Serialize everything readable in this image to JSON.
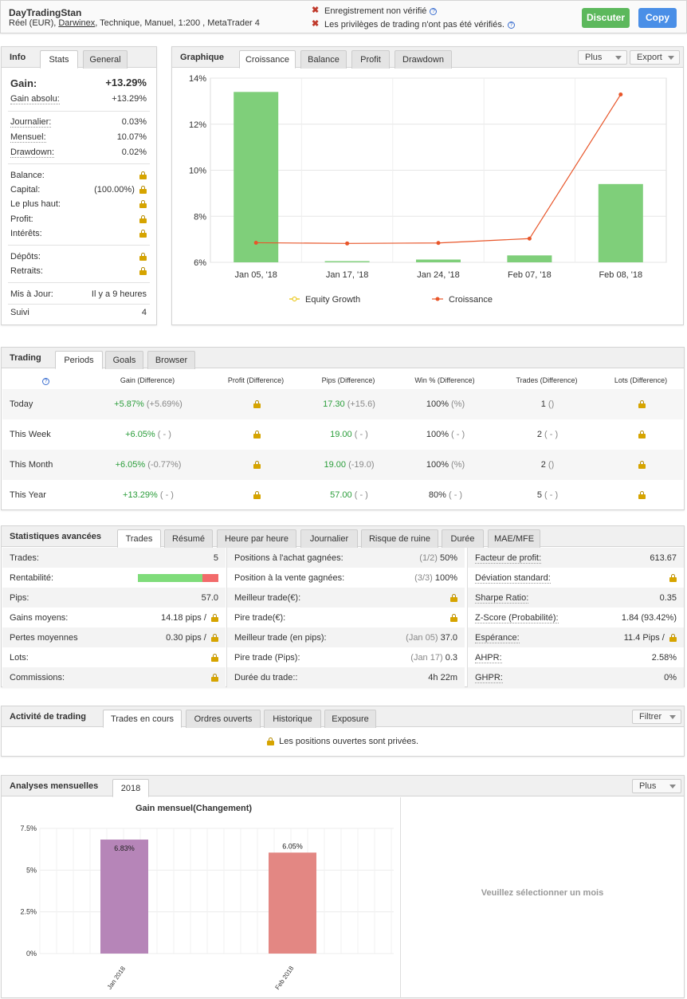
{
  "header": {
    "account_name": "DayTradingStan",
    "subtitle_prefix": "Réel (EUR),",
    "broker": "Darwinex",
    "subtitle_suffix": ", Technique, Manuel, 1:200 , MetaTrader 4",
    "warning1": "Enregistrement non vérifié",
    "warning2": "Les privilèges de trading n'ont pas été vérifiés.",
    "discuss_label": "Discuter",
    "copy_label": "Copy",
    "colors": {
      "discuss": "#5cb85c",
      "copy": "#4a8fe7"
    }
  },
  "info": {
    "title": "Info",
    "tabs": [
      "Stats",
      "General"
    ],
    "gain_label": "Gain:",
    "gain_value": "+13.29%",
    "gain_abs_label": "Gain absolu:",
    "gain_abs_value": "+13.29%",
    "daily_label": "Journalier:",
    "daily_value": "0.03%",
    "monthly_label": "Mensuel:",
    "monthly_value": "10.07%",
    "drawdown_label": "Drawdown:",
    "drawdown_value": "0.02%",
    "balance_label": "Balance:",
    "capital_label": "Capital:",
    "capital_value": "(100.00%)",
    "highest_label": "Le plus haut:",
    "profit_label": "Profit:",
    "interest_label": "Intérêts:",
    "deposits_label": "Dépôts:",
    "withdrawals_label": "Retraits:",
    "updated_label": "Mis à Jour:",
    "updated_value": "Il y a 9 heures",
    "followers_label": "Suivi",
    "followers_value": "4"
  },
  "graph": {
    "title": "Graphique",
    "tabs": [
      "Croissance",
      "Balance",
      "Profit",
      "Drawdown"
    ],
    "plus_label": "Plus",
    "export_label": "Export",
    "legend_equity": "Equity Growth",
    "legend_growth": "Croissance",
    "yticks": [
      "14%",
      "12%",
      "10%",
      "8%",
      "6%"
    ]
  },
  "chart_data": [
    {
      "type": "bar",
      "categories": [
        "Jan 05, '18",
        "Jan 17, '18",
        "Jan 24, '18",
        "Feb 07, '18",
        "Feb 08, '18"
      ],
      "ylim": [
        6,
        14
      ],
      "series": [
        {
          "name": "Equity Growth",
          "type": "bar",
          "values": [
            13.4,
            6.05,
            6.12,
            6.3,
            9.4
          ],
          "color": "#7fcf7a"
        },
        {
          "name": "Croissance",
          "type": "line",
          "values": [
            6.85,
            6.82,
            6.84,
            7.03,
            13.29
          ],
          "color": "#e8562a"
        }
      ],
      "legend": "bottom"
    },
    {
      "type": "bar",
      "title": "Gain mensuel(Changement)",
      "categories": [
        "Jan 2018",
        "Feb 2018"
      ],
      "values": [
        6.83,
        6.05
      ],
      "value_labels": [
        "6.83%",
        "6.05%"
      ],
      "colors": [
        "#b685b8",
        "#e38783"
      ],
      "yticks": [
        "7.5%",
        "5%",
        "2.5%",
        "0%"
      ],
      "ylim": [
        0,
        7.5
      ]
    }
  ],
  "trading": {
    "title": "Trading",
    "tabs": [
      "Periods",
      "Goals",
      "Browser"
    ],
    "columns": [
      "Gain (Difference)",
      "Profit (Difference)",
      "Pips (Difference)",
      "Win % (Difference)",
      "Trades (Difference)",
      "Lots (Difference)"
    ],
    "rows": [
      {
        "period": "Today",
        "gain": "+5.87%",
        "gain_diff": "(+5.69%)",
        "pips": "17.30",
        "pips_diff": "(+15.6)",
        "win": "100%",
        "win_diff": "(%)",
        "trades": "1",
        "trades_diff": "()"
      },
      {
        "period": "This Week",
        "gain": "+6.05%",
        "gain_diff": "( - )",
        "pips": "19.00",
        "pips_diff": "( - )",
        "win": "100%",
        "win_diff": "( - )",
        "trades": "2",
        "trades_diff": "( - )"
      },
      {
        "period": "This Month",
        "gain": "+6.05%",
        "gain_diff": "(-0.77%)",
        "pips": "19.00",
        "pips_diff": "(-19.0)",
        "win": "100%",
        "win_diff": "(%)",
        "trades": "2",
        "trades_diff": "()"
      },
      {
        "period": "This Year",
        "gain": "+13.29%",
        "gain_diff": "( - )",
        "pips": "57.00",
        "pips_diff": "( - )",
        "win": "80%",
        "win_diff": "( - )",
        "trades": "5",
        "trades_diff": "( - )"
      }
    ]
  },
  "stats": {
    "title": "Statistiques avancées",
    "tabs": [
      "Trades",
      "Résumé",
      "Heure par heure",
      "Journalier",
      "Risque de ruine",
      "Durée",
      "MAE/MFE"
    ],
    "col1": [
      {
        "label": "Trades:",
        "value": "5"
      },
      {
        "label": "Rentabilité:",
        "value": ""
      },
      {
        "label": "Pips:",
        "value": "57.0"
      },
      {
        "label": "Gains moyens:",
        "value": "14.18 pips /"
      },
      {
        "label": "Pertes moyennes",
        "value": "0.30 pips /"
      },
      {
        "label": "Lots:",
        "value": ""
      },
      {
        "label": "Commissions:",
        "value": ""
      }
    ],
    "profitability": 0.8,
    "col2": [
      {
        "label": "Positions à l'achat gagnées:",
        "extra": "(1/2)",
        "value": "50%"
      },
      {
        "label": "Position à la vente gagnées:",
        "extra": "(3/3)",
        "value": "100%"
      },
      {
        "label": "Meilleur trade(€):",
        "extra": "",
        "value": ""
      },
      {
        "label": "Pire trade(€):",
        "extra": "",
        "value": ""
      },
      {
        "label": "Meilleur trade (en pips):",
        "extra": "(Jan 05)",
        "value": "37.0"
      },
      {
        "label": "Pire trade (Pips):",
        "extra": "(Jan 17)",
        "value": "0.3"
      },
      {
        "label": "Durée du trade::",
        "extra": "",
        "value": "4h 22m"
      }
    ],
    "col3": [
      {
        "label": "Facteur de profit:",
        "value": "613.67"
      },
      {
        "label": "Déviation standard:",
        "value": ""
      },
      {
        "label": "Sharpe Ratio:",
        "value": "0.35"
      },
      {
        "label": "Z-Score (Probabilité):",
        "value": "1.84 (93.42%)"
      },
      {
        "label": "Espérance:",
        "value": "11.4 Pips /"
      },
      {
        "label": "AHPR:",
        "value": "2.58%"
      },
      {
        "label": "GHPR:",
        "value": "0%"
      }
    ]
  },
  "activity": {
    "title": "Activité de trading",
    "tabs": [
      "Trades en cours",
      "Ordres ouverts",
      "Historique",
      "Exposure"
    ],
    "filter_label": "Filtrer",
    "private_msg": "Les positions ouvertes sont privées."
  },
  "monthly": {
    "title": "Analyses mensuelles",
    "tab": "2018",
    "plus_label": "Plus",
    "select_msg": "Veuillez sélectionner un mois"
  }
}
